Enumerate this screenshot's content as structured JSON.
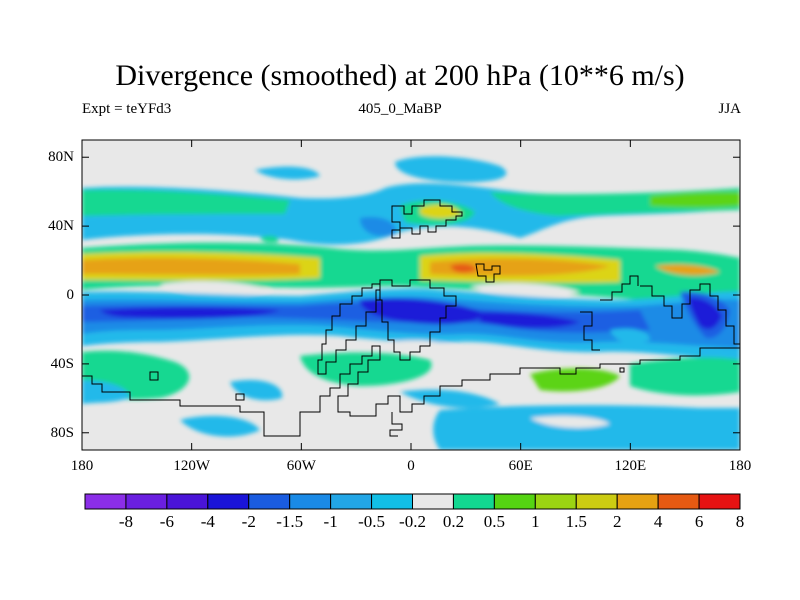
{
  "title": "Divergence (smoothed) at 200 hPa (10**6 m/s)",
  "left_string": "Expt = teYFd3",
  "center_string": "405_0_MaBP",
  "right_string": "JJA",
  "lat_ticks": [
    {
      "value": 80,
      "label": "80N"
    },
    {
      "value": 40,
      "label": "40N"
    },
    {
      "value": 0,
      "label": "0"
    },
    {
      "value": -40,
      "label": "40S"
    },
    {
      "value": -80,
      "label": "80S"
    }
  ],
  "lon_ticks": [
    {
      "value": -180,
      "label": "180"
    },
    {
      "value": -120,
      "label": "120W"
    },
    {
      "value": -60,
      "label": "60W"
    },
    {
      "value": 0,
      "label": "0"
    },
    {
      "value": 60,
      "label": "60E"
    },
    {
      "value": 120,
      "label": "120E"
    },
    {
      "value": 180,
      "label": "180"
    }
  ],
  "colorbar": {
    "colors": [
      "#8b2ee8",
      "#6a1fe0",
      "#4a14d8",
      "#1a14d8",
      "#1a5ce0",
      "#1a8ae6",
      "#22a6e6",
      "#12bfe6",
      "#e8e8e8",
      "#12d891",
      "#55d412",
      "#9bd412",
      "#cccc12",
      "#e6a212",
      "#e65a12",
      "#e61212"
    ],
    "labels": [
      "-8",
      "-6",
      "-4",
      "-2",
      "-1.5",
      "-1",
      "-0.5",
      "-0.2",
      "0.2",
      "0.5",
      "1",
      "1.5",
      "2",
      "4",
      "6",
      "8"
    ]
  },
  "field_colors": {
    "gray": "#e8e8e8",
    "cyan": "#22b9ea",
    "lightblue": "#1d8be6",
    "blue": "#1c5ee2",
    "darkblue": "#1a1ed8",
    "green": "#12d891",
    "lime": "#5cd414",
    "yellow": "#dcd414",
    "orange": "#e6a212",
    "red": "#e65a12"
  }
}
